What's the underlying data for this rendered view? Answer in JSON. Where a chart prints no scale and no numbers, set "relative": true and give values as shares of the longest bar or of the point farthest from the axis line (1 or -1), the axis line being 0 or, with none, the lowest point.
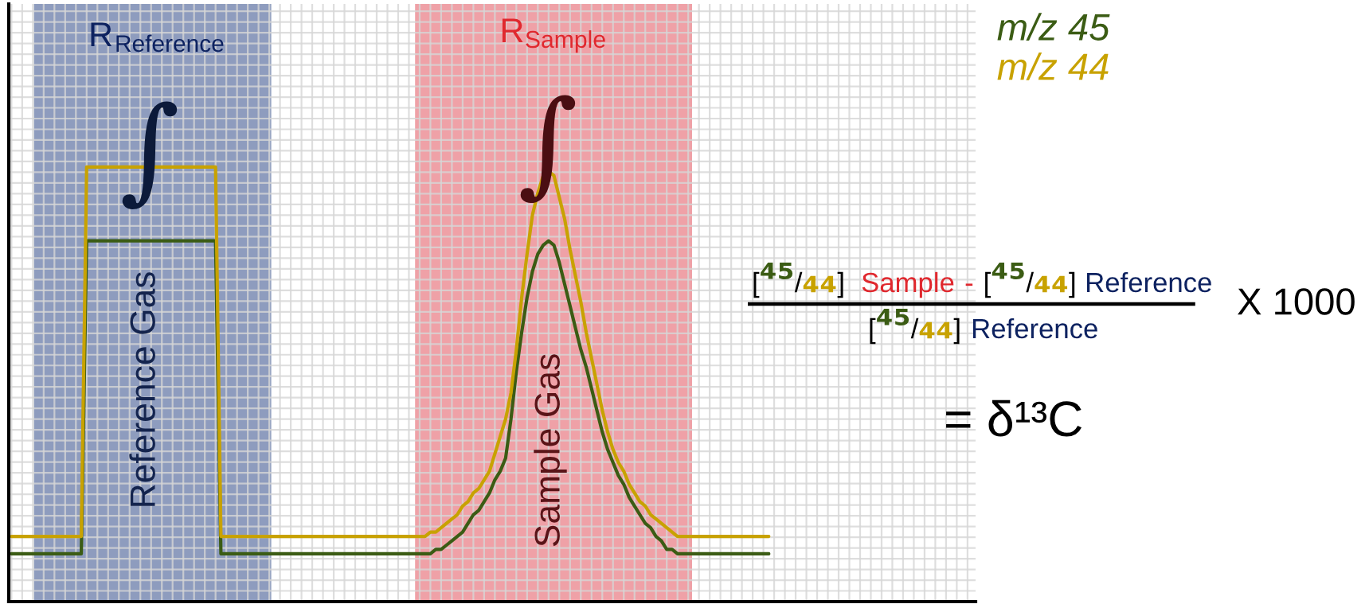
{
  "chart_data": {
    "type": "line",
    "relative": true,
    "grid": true,
    "legend": "top right",
    "categories": [
      null,
      null,
      null,
      null,
      null,
      null,
      null,
      null,
      null,
      null,
      null,
      null,
      null,
      null,
      null,
      null,
      null,
      null,
      null,
      null,
      null,
      null,
      null,
      null,
      null,
      null,
      null,
      null,
      null,
      null,
      null,
      null,
      null,
      null,
      null,
      null,
      null,
      null,
      null,
      null,
      null,
      null,
      null,
      null,
      null,
      null,
      null,
      null,
      null,
      null,
      null,
      null,
      null,
      null,
      null,
      null,
      null,
      null,
      null,
      null,
      null,
      null,
      null,
      null,
      null,
      null,
      null,
      null,
      null,
      null,
      null,
      null,
      null,
      null,
      null,
      null,
      null,
      null,
      null,
      null,
      null,
      null,
      null,
      null,
      null,
      null,
      null,
      null,
      null,
      null,
      null,
      null,
      null,
      null,
      null,
      null,
      null,
      null,
      null,
      null,
      null,
      null,
      null,
      null,
      null,
      null,
      null,
      null,
      null,
      null,
      null,
      null,
      null,
      null,
      null,
      null,
      null,
      null,
      null,
      null,
      null,
      null,
      null,
      null,
      null,
      null,
      null,
      null,
      null,
      null,
      null,
      null,
      null,
      null,
      null,
      null,
      null,
      null,
      null,
      null,
      null,
      null,
      null,
      null,
      null,
      null,
      null,
      null,
      null,
      null,
      null,
      null,
      null,
      null,
      null,
      null,
      null,
      null,
      null,
      null,
      null,
      null,
      null,
      null,
      null,
      null,
      null,
      null,
      null,
      null,
      null,
      null,
      null,
      null,
      null,
      null,
      null,
      null,
      null,
      null
    ],
    "series": [
      {
        "name": "m/z 45",
        "color": "#3b5c14",
        "values": [
          0.11,
          0.11,
          0.11,
          0.11,
          0.11,
          0.11,
          0.11,
          0.11,
          0.11,
          0.11,
          0.11,
          0.11,
          0.11,
          0.11,
          0.83,
          0.83,
          0.83,
          0.83,
          0.83,
          0.83,
          0.83,
          0.83,
          0.83,
          0.83,
          0.83,
          0.83,
          0.83,
          0.83,
          0.83,
          0.83,
          0.83,
          0.83,
          0.83,
          0.83,
          0.83,
          0.83,
          0.83,
          0.83,
          0.83,
          0.11,
          0.11,
          0.11,
          0.11,
          0.11,
          0.11,
          0.11,
          0.11,
          0.11,
          0.11,
          0.11,
          0.11,
          0.11,
          0.11,
          0.11,
          0.11,
          0.11,
          0.11,
          0.11,
          0.11,
          0.11,
          0.11,
          0.11,
          0.11,
          0.11,
          0.11,
          0.11,
          0.11,
          0.11,
          0.11,
          0.11,
          0.11,
          0.11,
          0.11,
          0.11,
          0.11,
          0.11,
          0.11,
          0.11,
          0.11,
          0.12,
          0.12,
          0.13,
          0.14,
          0.15,
          0.16,
          0.18,
          0.2,
          0.21,
          0.23,
          0.25,
          0.28,
          0.3,
          0.33,
          0.42,
          0.53,
          0.62,
          0.7,
          0.76,
          0.8,
          0.82,
          0.83,
          0.82,
          0.78,
          0.73,
          0.68,
          0.63,
          0.58,
          0.54,
          0.49,
          0.44,
          0.39,
          0.35,
          0.32,
          0.29,
          0.27,
          0.24,
          0.22,
          0.2,
          0.18,
          0.17,
          0.15,
          0.14,
          0.12,
          0.12,
          0.11,
          0.11,
          0.11,
          0.11,
          0.11,
          0.11,
          0.11,
          0.11,
          0.11,
          0.11,
          0.11,
          0.11,
          0.11,
          0.11,
          0.11,
          0.11,
          0.11,
          0.11,
          null,
          null,
          null,
          null,
          null,
          null,
          null,
          null,
          null,
          null,
          null,
          null,
          null,
          null,
          null,
          null,
          null,
          null,
          null,
          null,
          null,
          null,
          null,
          null,
          null,
          null,
          null,
          null,
          null,
          null,
          null,
          null,
          null,
          null,
          null,
          null,
          null,
          null
        ]
      },
      {
        "name": "m/z 44",
        "color": "#c8a200",
        "values": [
          0.15,
          0.15,
          0.15,
          0.15,
          0.15,
          0.15,
          0.15,
          0.15,
          0.15,
          0.15,
          0.15,
          0.15,
          0.15,
          0.15,
          1,
          1,
          1,
          1,
          1,
          1,
          1,
          1,
          1,
          1,
          1,
          1,
          1,
          1,
          1,
          1,
          1,
          1,
          1,
          1,
          1,
          1,
          1,
          1,
          1,
          0.15,
          0.15,
          0.15,
          0.15,
          0.15,
          0.15,
          0.15,
          0.15,
          0.15,
          0.15,
          0.15,
          0.15,
          0.15,
          0.15,
          0.15,
          0.15,
          0.15,
          0.15,
          0.15,
          0.15,
          0.15,
          0.15,
          0.15,
          0.15,
          0.15,
          0.15,
          0.15,
          0.15,
          0.15,
          0.15,
          0.15,
          0.15,
          0.15,
          0.15,
          0.15,
          0.15,
          0.15,
          0.15,
          0.15,
          0.16,
          0.16,
          0.17,
          0.18,
          0.19,
          0.2,
          0.22,
          0.23,
          0.25,
          0.26,
          0.28,
          0.3,
          0.34,
          0.38,
          0.42,
          0.48,
          0.58,
          0.7,
          0.8,
          0.89,
          0.94,
          0.98,
          0.99,
          0.98,
          0.93,
          0.88,
          0.81,
          0.75,
          0.69,
          0.62,
          0.56,
          0.5,
          0.44,
          0.39,
          0.35,
          0.32,
          0.3,
          0.27,
          0.25,
          0.23,
          0.22,
          0.2,
          0.19,
          0.18,
          0.17,
          0.16,
          0.15,
          0.15,
          0.15,
          0.15,
          0.15,
          0.15,
          0.15,
          0.15,
          0.15,
          0.15,
          0.15,
          0.15,
          0.15,
          0.15,
          0.15,
          0.15,
          0.15,
          0.15,
          null,
          null,
          null,
          null,
          null,
          null,
          null,
          null,
          null,
          null,
          null,
          null,
          null,
          null,
          null,
          null,
          null,
          null,
          null,
          null,
          null,
          null,
          null,
          null,
          null,
          null,
          null,
          null,
          null,
          null,
          null,
          null,
          null,
          null,
          null,
          null,
          null,
          null
        ]
      }
    ],
    "annotations": [
      "R",
      "Reference",
      "R$_{Sample}$",
      "Reference Gas",
      "Sample Gas",
      "∫",
      "∫",
      "[⁴⁵/₄₄] Sample - [⁴⁵/₄₄] Reference",
      "[⁴⁵/₄₄] Reference",
      "X 1000",
      "= δ¹³C"
    ]
  }
}
